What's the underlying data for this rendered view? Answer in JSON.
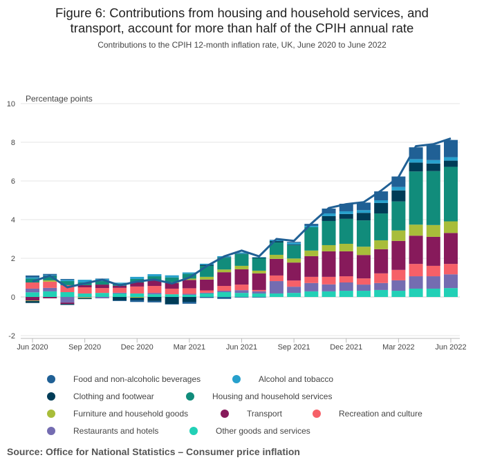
{
  "title_line1": "Figure 6: Contributions from housing and household services, and",
  "title_line2": "transport, account for more than half of the CPIH annual rate",
  "subtitle": "Contributions to the CPIH 12-month inflation rate, UK, June 2020 to June 2022",
  "source": "Source: Office for National Statistics – Consumer price inflation",
  "chart_data": {
    "type": "bar",
    "stacked": true,
    "ylabel": "Percentage points",
    "ylim": [
      -2,
      10
    ],
    "yticks": [
      -2,
      0,
      2,
      4,
      6,
      8,
      10
    ],
    "grid": true,
    "legend_position": "bottom",
    "categories": [
      "Jun 2020",
      "Jul 2020",
      "Aug 2020",
      "Sep 2020",
      "Oct 2020",
      "Nov 2020",
      "Dec 2020",
      "Jan 2021",
      "Feb 2021",
      "Mar 2021",
      "Apr 2021",
      "May 2021",
      "Jun 2021",
      "Jul 2021",
      "Aug 2021",
      "Sep 2021",
      "Oct 2021",
      "Nov 2021",
      "Dec 2021",
      "Jan 2022",
      "Feb 2022",
      "Mar 2022",
      "Apr 2022",
      "May 2022",
      "Jun 2022"
    ],
    "xtick_labels": [
      "Jun 2020",
      "Sep 2020",
      "Dec 2020",
      "Mar 2021",
      "Jun 2021",
      "Sep 2021",
      "Dec 2021",
      "Mar 2022",
      "Jun 2022"
    ],
    "series": [
      {
        "name": "Other goods and services",
        "color": "#22d0b6",
        "values": [
          0.24,
          0.29,
          0.25,
          0.18,
          0.21,
          0.18,
          0.18,
          0.14,
          0.14,
          0.11,
          0.18,
          0.25,
          0.21,
          0.18,
          0.18,
          0.21,
          0.29,
          0.29,
          0.32,
          0.32,
          0.36,
          0.32,
          0.43,
          0.43,
          0.46
        ]
      },
      {
        "name": "Restaurants and hotels",
        "color": "#746cb1",
        "values": [
          0.19,
          0.18,
          -0.29,
          -0.02,
          -0.07,
          0.04,
          0,
          0.07,
          0,
          0.05,
          0.04,
          0.07,
          0.14,
          0.11,
          0.64,
          0.32,
          0.43,
          0.36,
          0.43,
          0.32,
          0.36,
          0.54,
          0.64,
          0.64,
          0.71
        ]
      },
      {
        "name": "Recreation and culture",
        "color": "#f66068",
        "values": [
          0.32,
          0.32,
          0.36,
          0.32,
          0.25,
          0.25,
          0.36,
          0.36,
          0.29,
          0.29,
          0.12,
          0.25,
          0.29,
          0.07,
          0.29,
          0.32,
          0.32,
          0.39,
          0.32,
          0.32,
          0.5,
          0.54,
          0.64,
          0.54,
          0.54
        ]
      },
      {
        "name": "Transport",
        "color": "#871a5b",
        "values": [
          -0.18,
          -0.07,
          -0.07,
          0.11,
          0.18,
          0.11,
          0.21,
          0.29,
          0.29,
          0.43,
          0.56,
          0.71,
          0.79,
          0.86,
          0.86,
          0.93,
          1.07,
          1.32,
          1.29,
          1.21,
          1.25,
          1.5,
          1.46,
          1.5,
          1.6
        ]
      },
      {
        "name": "Furniture and household goods",
        "color": "#a8bd3a",
        "values": [
          -0.03,
          0.07,
          0,
          -0.04,
          0,
          0,
          -0.04,
          0,
          0.05,
          0.07,
          0.14,
          0.14,
          0.18,
          0.14,
          0.21,
          0.21,
          0.29,
          0.32,
          0.39,
          0.43,
          0.46,
          0.54,
          0.57,
          0.61,
          0.6
        ]
      },
      {
        "name": "Housing and household services",
        "color": "#118c7b",
        "values": [
          0.2,
          0.21,
          0.21,
          0.14,
          0.18,
          0.11,
          0.18,
          0.21,
          0.24,
          0.25,
          0.57,
          0.61,
          0.61,
          0.64,
          0.64,
          0.68,
          1.21,
          1.25,
          1.29,
          1.36,
          1.39,
          1.5,
          2.75,
          2.79,
          2.82
        ]
      },
      {
        "name": "Clothing and footwear",
        "color": "#003c57",
        "values": [
          -0.1,
          0.03,
          -0.05,
          -0.05,
          0,
          -0.18,
          -0.12,
          -0.21,
          -0.36,
          -0.25,
          0.05,
          0.02,
          0.02,
          0.04,
          0.07,
          0.04,
          0,
          0.25,
          0.25,
          0.39,
          0.54,
          0.57,
          0.46,
          0.39,
          0.32
        ]
      },
      {
        "name": "Alcohol and tobacco",
        "color": "#27a0cc",
        "values": [
          0.06,
          0.04,
          0.07,
          0.14,
          0.11,
          0.05,
          0.11,
          0.11,
          0.11,
          0.07,
          0.06,
          0.06,
          0.06,
          0.02,
          0.05,
          0.1,
          0.07,
          0.14,
          0.14,
          0.14,
          0.14,
          0.18,
          0.18,
          0.18,
          0.18
        ]
      },
      {
        "name": "Food and non-alcoholic beverages",
        "color": "#206095",
        "values": [
          0.1,
          0.05,
          0.04,
          0,
          0.02,
          -0.03,
          -0.1,
          -0.07,
          -0.03,
          -0.1,
          -0.05,
          -0.1,
          -0.03,
          -0.03,
          0.02,
          0.04,
          0.1,
          0.25,
          0.39,
          0.39,
          0.46,
          0.54,
          0.61,
          0.79,
          0.89
        ]
      }
    ],
    "line": {
      "color": "#206095",
      "values": [
        0.8,
        1.1,
        0.5,
        0.7,
        0.9,
        0.6,
        0.8,
        0.9,
        0.7,
        1.0,
        1.6,
        2.1,
        2.4,
        2.1,
        3.0,
        2.9,
        3.8,
        4.6,
        4.8,
        4.9,
        5.5,
        6.2,
        7.8,
        7.9,
        8.2
      ]
    },
    "legend": [
      "Food and non-alcoholic beverages",
      "Alcohol and tobacco",
      "Clothing and footwear",
      "Housing and household services",
      "Furniture and household goods",
      "Transport",
      "Recreation and culture",
      "Restaurants and hotels",
      "Other goods and services"
    ]
  }
}
